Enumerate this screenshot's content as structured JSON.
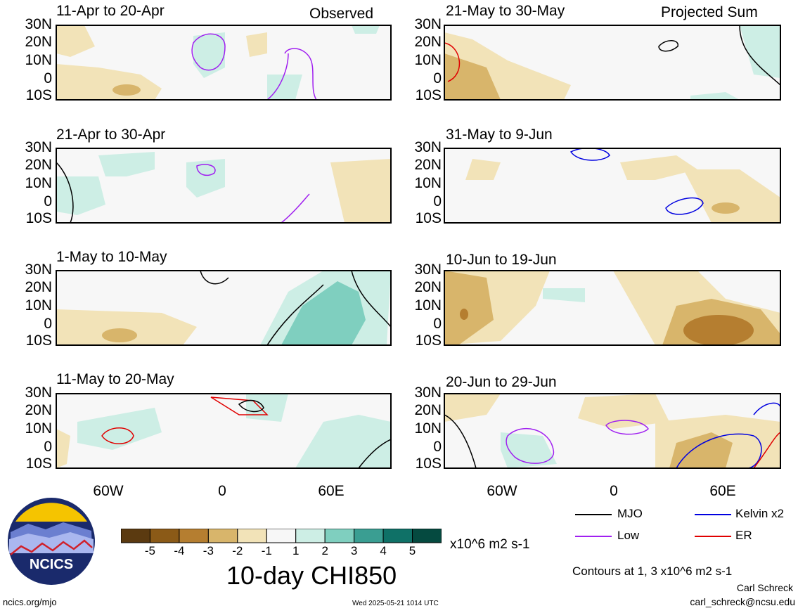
{
  "left_header": "Observed",
  "right_header": "Projected Sum",
  "panels_left": [
    {
      "title": "11-Apr to 20-Apr"
    },
    {
      "title": "21-Apr to 30-Apr"
    },
    {
      "title": "1-May to 10-May"
    },
    {
      "title": "11-May to 20-May"
    }
  ],
  "panels_right": [
    {
      "title": "21-May to 30-May"
    },
    {
      "title": "31-May to 9-Jun"
    },
    {
      "title": "10-Jun to 19-Jun"
    },
    {
      "title": "20-Jun to 29-Jun"
    }
  ],
  "lat_labels": [
    "30N",
    "20N",
    "10N",
    "0",
    "10S"
  ],
  "lon_labels": [
    "60W",
    "0",
    "60E"
  ],
  "colorbar": {
    "ticks": [
      "-5",
      "-4",
      "-3",
      "-2",
      "-1",
      "1",
      "2",
      "3",
      "4",
      "5"
    ],
    "colors": [
      "#5b3a10",
      "#8b5a17",
      "#b57e30",
      "#d8b56b",
      "#f2e3b8",
      "#f7f7f7",
      "#cdeee5",
      "#7fcfbf",
      "#3a9e92",
      "#0f7167",
      "#054a40"
    ],
    "units": "x10^6 m2 s-1",
    "title": "10-day CHI850"
  },
  "legend": {
    "items": [
      {
        "label": "MJO",
        "color": "#000000"
      },
      {
        "label": "Kelvin x2",
        "color": "#0000e0"
      },
      {
        "label": "Low",
        "color": "#a020f0"
      },
      {
        "label": "ER",
        "color": "#e00000"
      }
    ],
    "contours_note": "Contours at 1, 3 x10^6 m2 s-1"
  },
  "logo": {
    "text": "NCICS"
  },
  "footer": {
    "url": "ncics.org/mjo",
    "timestamp": "Wed 2025-05-21 1014 UTC",
    "author": "Carl Schreck",
    "email": "carl_schreck@ncsu.edu"
  }
}
